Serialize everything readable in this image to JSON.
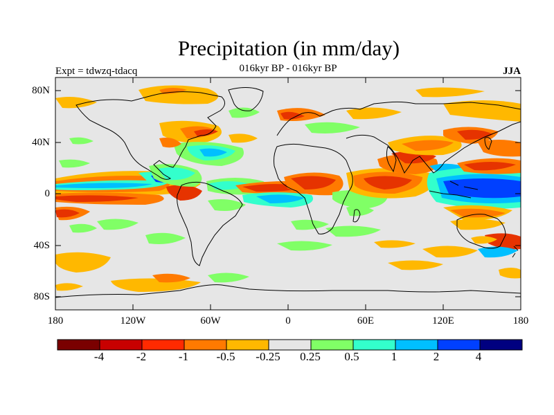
{
  "title": "Precipitation (in mm/day)",
  "subtitle": "016kyr BP - 016kyr BP",
  "expt_label": "Expt = tdwzq-tdacq",
  "season": "JJA",
  "lat_labels": [
    "80N",
    "40N",
    "0",
    "40S",
    "80S"
  ],
  "lon_labels": [
    "180",
    "120W",
    "60W",
    "0",
    "60E",
    "120E",
    "180"
  ],
  "colorbar": {
    "colors": [
      "#7a0000",
      "#c80000",
      "#ff2a00",
      "#ff7a00",
      "#ffb800",
      "#e6e6e6",
      "#80ff66",
      "#33ffcc",
      "#00bfff",
      "#0040ff",
      "#000080"
    ],
    "labels": [
      "-4",
      "-2",
      "-1",
      "-0.5",
      "-0.25",
      "0.25",
      "0.5",
      "1",
      "2",
      "4"
    ]
  },
  "colors": {
    "background": "#e6e6e6",
    "dry_strong": "#e63300",
    "dry_mid": "#ff7a00",
    "dry_weak": "#ffb800",
    "wet_weak": "#80ff66",
    "wet_mid": "#33ffcc",
    "wet_strong": "#00bfff",
    "wet_vstrong": "#0040ff"
  }
}
